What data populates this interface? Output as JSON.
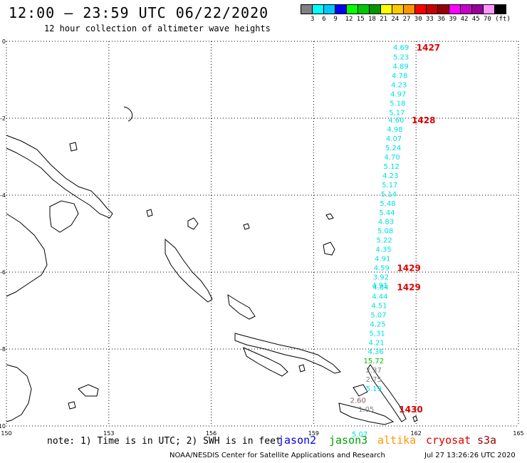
{
  "header": {
    "title": "12:00 – 23:59 UTC 06/22/2020",
    "subtitle": "12 hour collection of altimeter wave heights"
  },
  "scale": {
    "unit": "(ft)",
    "colors": [
      "#808080",
      "#00ffff",
      "#00c8ff",
      "#0000ff",
      "#00ff00",
      "#00c800",
      "#009600",
      "#ffff00",
      "#ffc800",
      "#ff9600",
      "#ff0000",
      "#c80000",
      "#960000",
      "#ff00ff",
      "#c800c8",
      "#960096",
      "#ff96ff",
      "#000000"
    ],
    "labels": [
      "3",
      "6",
      "9",
      "12",
      "15",
      "18",
      "21",
      "24",
      "27",
      "30",
      "33",
      "36",
      "39",
      "42",
      "45",
      "70"
    ]
  },
  "axes": {
    "x_ticks": [
      "150",
      "153",
      "156",
      "159",
      "162",
      "165"
    ],
    "y_ticks": [
      "0",
      "-2",
      "-4",
      "-6",
      "-8",
      "-10"
    ]
  },
  "readings": [
    {
      "text": "4.69",
      "lat": -0.15,
      "lon": 161.56,
      "color": "#00e0e0"
    },
    {
      "text": "5.23",
      "lat": -0.4,
      "lon": 161.56,
      "color": "#00e0e0"
    },
    {
      "text": "4.89",
      "lat": -0.64,
      "lon": 161.55,
      "color": "#00e0e0"
    },
    {
      "text": "4.78",
      "lat": -0.88,
      "lon": 161.52,
      "color": "#00e0e0"
    },
    {
      "text": "4.23",
      "lat": -1.12,
      "lon": 161.5,
      "color": "#00e0e0"
    },
    {
      "text": "4.97",
      "lat": -1.36,
      "lon": 161.48,
      "color": "#00e0e0"
    },
    {
      "text": "5.18",
      "lat": -1.6,
      "lon": 161.46,
      "color": "#00e0e0"
    },
    {
      "text": "5.17",
      "lat": -1.84,
      "lon": 161.44,
      "color": "#00e0e0"
    },
    {
      "text": "4.60",
      "lat": -2.04,
      "lon": 161.42,
      "color": "#00e0e0"
    },
    {
      "text": "4.98",
      "lat": -2.28,
      "lon": 161.38,
      "color": "#00e0e0"
    },
    {
      "text": "4.07",
      "lat": -2.52,
      "lon": 161.35,
      "color": "#00e0e0"
    },
    {
      "text": "5.24",
      "lat": -2.76,
      "lon": 161.33,
      "color": "#00e0e0"
    },
    {
      "text": "4.70",
      "lat": -3.0,
      "lon": 161.3,
      "color": "#00e0e0"
    },
    {
      "text": "5.12",
      "lat": -3.24,
      "lon": 161.28,
      "color": "#00e0e0"
    },
    {
      "text": "4.23",
      "lat": -3.48,
      "lon": 161.25,
      "color": "#00e0e0"
    },
    {
      "text": "5.17",
      "lat": -3.72,
      "lon": 161.23,
      "color": "#00e0e0"
    },
    {
      "text": "5.14",
      "lat": -3.96,
      "lon": 161.2,
      "color": "#00e0e0"
    },
    {
      "text": "5.48",
      "lat": -4.2,
      "lon": 161.17,
      "color": "#00e0e0"
    },
    {
      "text": "5.44",
      "lat": -4.44,
      "lon": 161.15,
      "color": "#00e0e0"
    },
    {
      "text": "4.83",
      "lat": -4.68,
      "lon": 161.12,
      "color": "#00e0e0"
    },
    {
      "text": "5.08",
      "lat": -4.92,
      "lon": 161.1,
      "color": "#00e0e0"
    },
    {
      "text": "5.22",
      "lat": -5.16,
      "lon": 161.07,
      "color": "#00e0e0"
    },
    {
      "text": "4.35",
      "lat": -5.4,
      "lon": 161.05,
      "color": "#00e0e0"
    },
    {
      "text": "4.91",
      "lat": -5.64,
      "lon": 161.02,
      "color": "#00e0e0"
    },
    {
      "text": "4.59",
      "lat": -5.88,
      "lon": 160.99,
      "color": "#00e0e0"
    },
    {
      "text": "3.92",
      "lat": -6.12,
      "lon": 160.97,
      "color": "#00e0e0"
    },
    {
      "text": "4.91",
      "lat": -6.33,
      "lon": 160.94,
      "color": "#00e0e0"
    },
    {
      "text": "4.84",
      "lat": -6.38,
      "lon": 160.96,
      "color": "#00e0e0"
    },
    {
      "text": "4.44",
      "lat": -6.62,
      "lon": 160.94,
      "color": "#00e0e0"
    },
    {
      "text": "4.51",
      "lat": -6.86,
      "lon": 160.92,
      "color": "#00e0e0"
    },
    {
      "text": "5.07",
      "lat": -7.1,
      "lon": 160.9,
      "color": "#00e0e0"
    },
    {
      "text": "4.25",
      "lat": -7.34,
      "lon": 160.88,
      "color": "#00e0e0"
    },
    {
      "text": "5.31",
      "lat": -7.58,
      "lon": 160.86,
      "color": "#00e0e0"
    },
    {
      "text": "4.21",
      "lat": -7.82,
      "lon": 160.84,
      "color": "#00e0e0"
    },
    {
      "text": "4.36",
      "lat": -8.06,
      "lon": 160.82,
      "color": "#00e0e0"
    },
    {
      "text": "15.72",
      "lat": -8.3,
      "lon": 160.76,
      "color": "#00c000"
    },
    {
      "text": "2.37",
      "lat": -8.54,
      "lon": 160.76,
      "color": "#808080"
    },
    {
      "text": "2.75",
      "lat": -8.78,
      "lon": 160.76,
      "color": "#808080"
    },
    {
      "text": "5.19",
      "lat": -9.02,
      "lon": 160.76,
      "color": "#00e0e0"
    },
    {
      "text": "2.60",
      "lat": -9.32,
      "lon": 160.3,
      "color": "#806060"
    },
    {
      "text": "1.05",
      "lat": -9.56,
      "lon": 160.54,
      "color": "#808080"
    },
    {
      "text": "5.07",
      "lat": -10.2,
      "lon": 160.35,
      "color": "#00e0e0"
    }
  ],
  "orbits": [
    {
      "text": "1427",
      "lat": -0.15,
      "lon": 162.36
    },
    {
      "text": "1428",
      "lat": -2.04,
      "lon": 162.22
    },
    {
      "text": "1429",
      "lat": -5.88,
      "lon": 161.79
    },
    {
      "text": "1429",
      "lat": -6.38,
      "lon": 161.79
    },
    {
      "text": "1430",
      "lat": -9.56,
      "lon": 161.85
    }
  ],
  "footer": {
    "note": "note: 1) Time is in UTC; 2) SWH is in feet",
    "legend": [
      {
        "name": "jason2",
        "color": "#0000e0"
      },
      {
        "name": "jason3",
        "color": "#00a000"
      },
      {
        "name": "altika",
        "color": "#ff9600"
      },
      {
        "name": "cryosat",
        "color": "#dd0000"
      },
      {
        "name": "s3a",
        "color": "#990000"
      }
    ],
    "credit": "NOAA/NESDIS Center for Satellite Applications and Research",
    "timestamp": "Jul 27 13:26:26 UTC 2020"
  }
}
